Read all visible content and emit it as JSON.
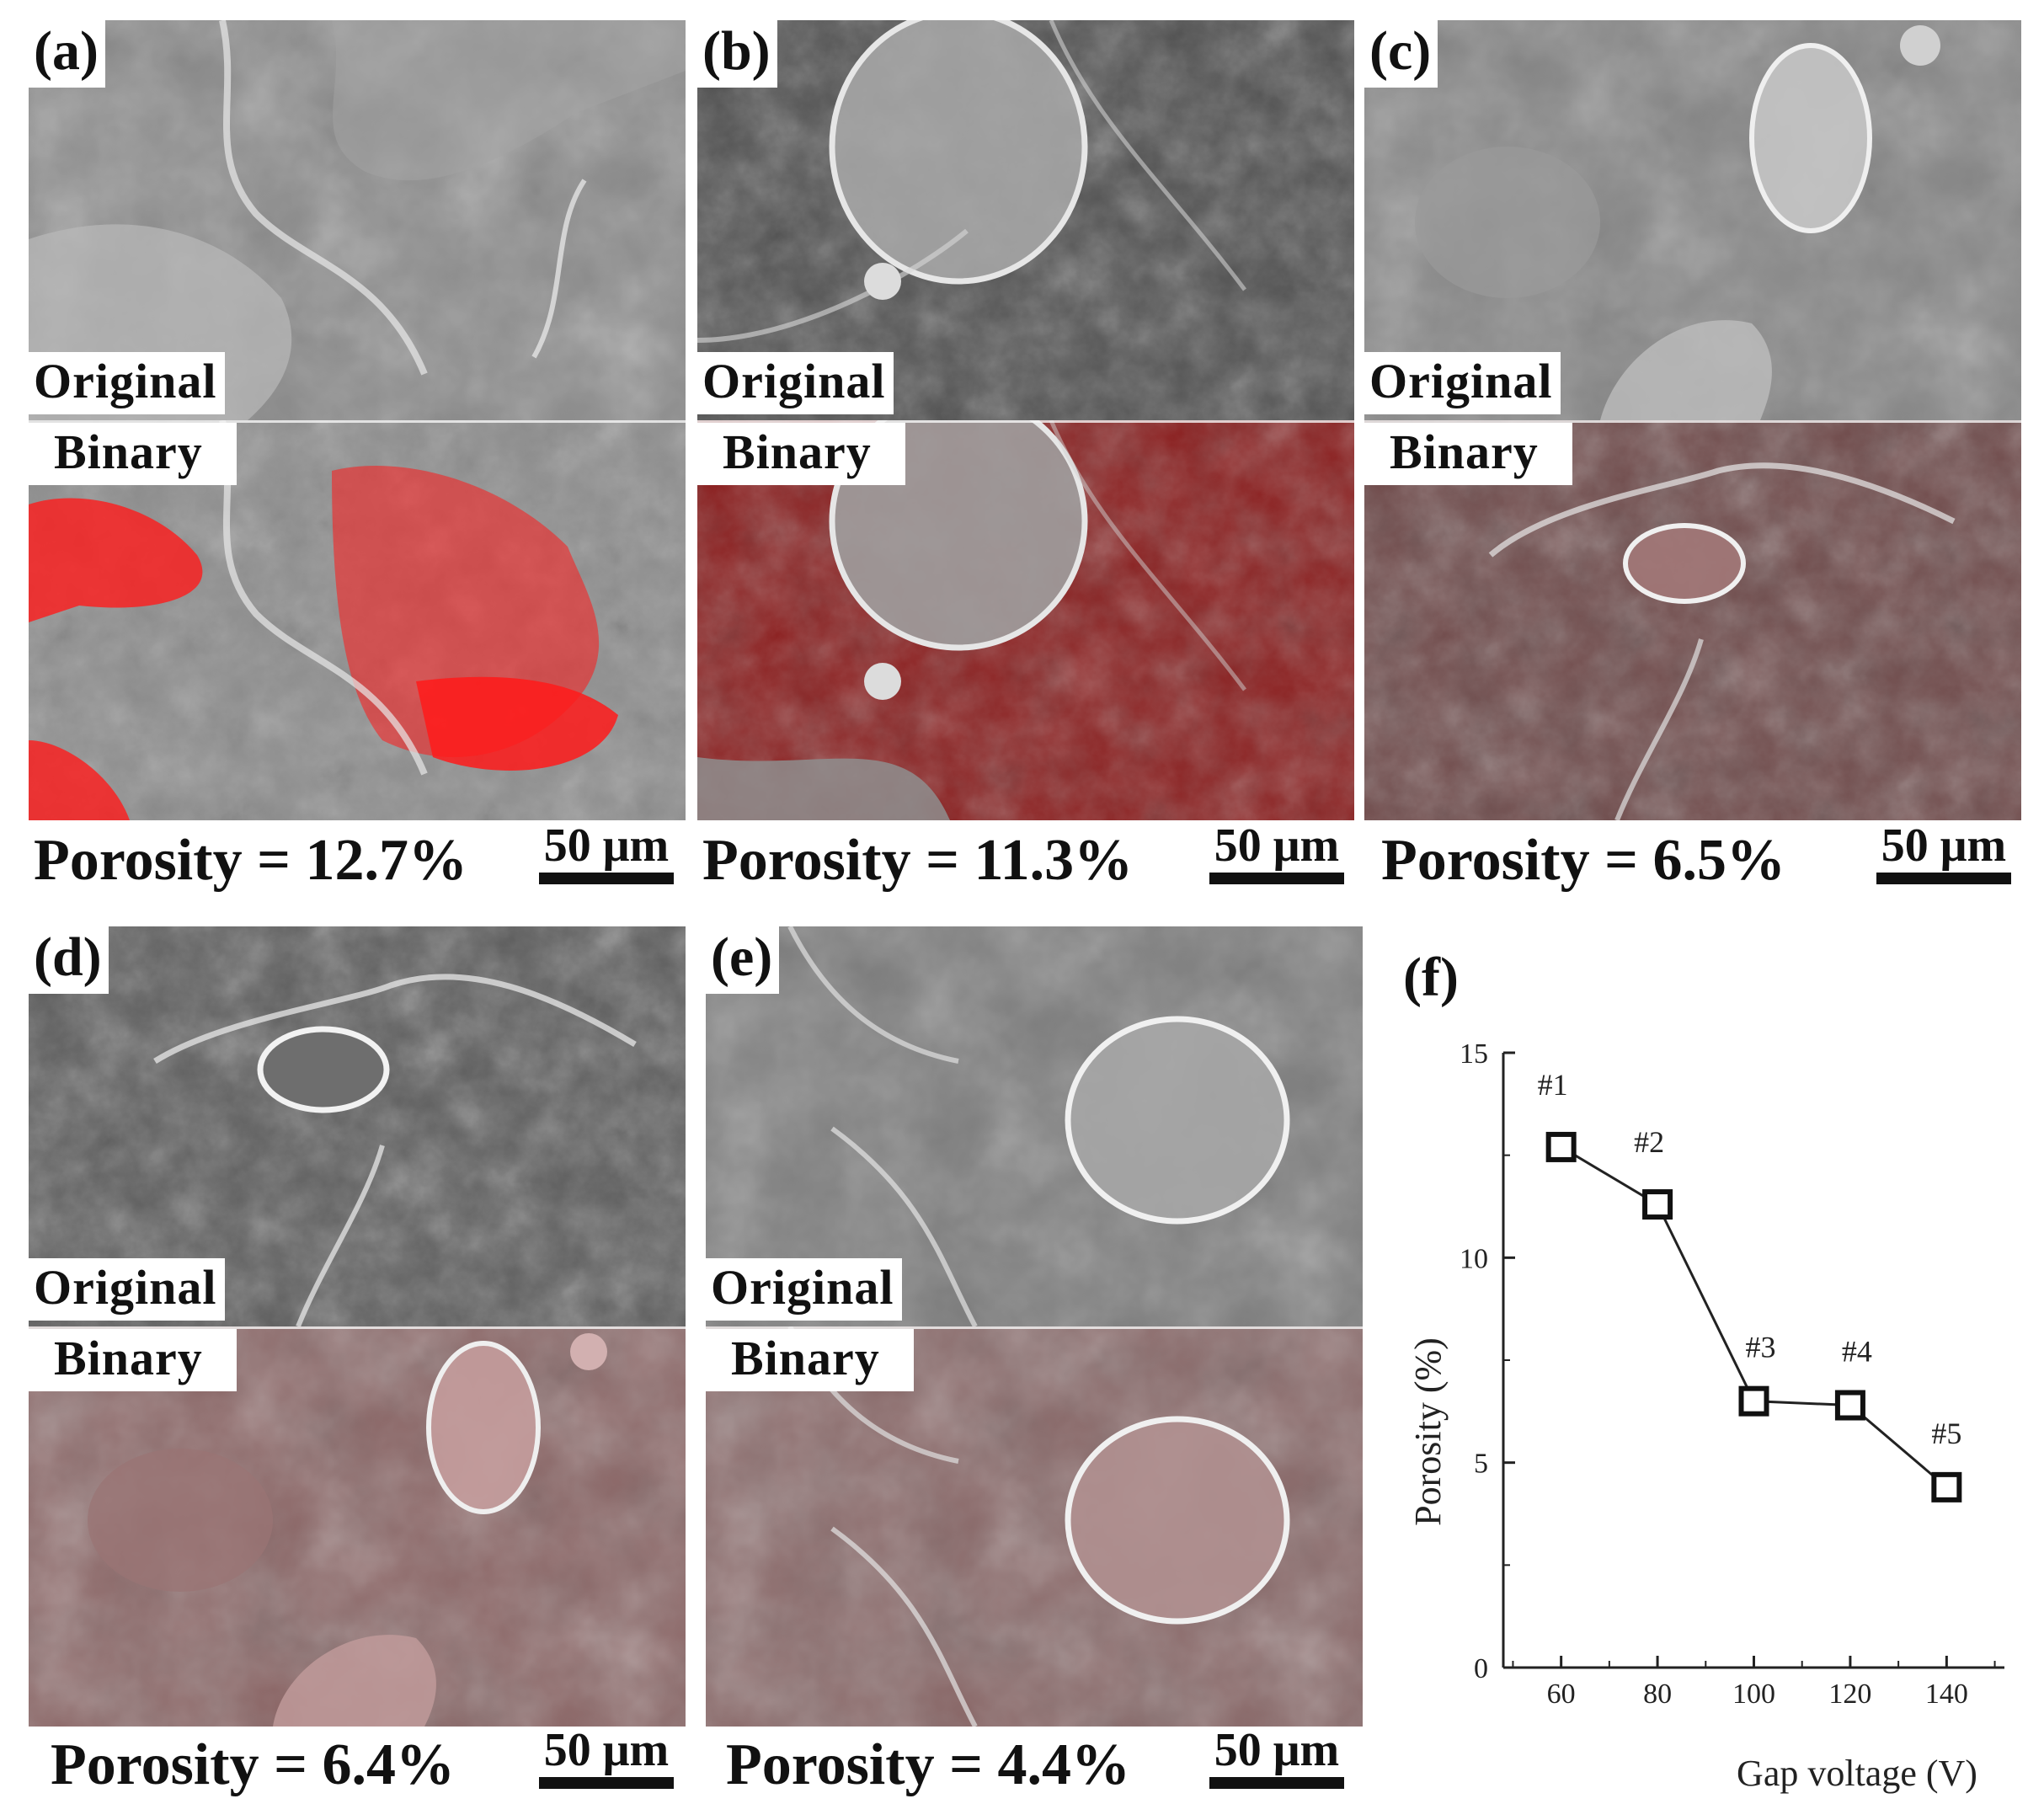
{
  "panels": [
    {
      "letter": "(a)",
      "original_label": "Original",
      "binary_label": "Binary",
      "porosity_text": "Porosity = 12.7%",
      "scale_text": "50 μm"
    },
    {
      "letter": "(b)",
      "original_label": "Original",
      "binary_label": "Binary",
      "porosity_text": "Porosity = 11.3%",
      "scale_text": "50 μm"
    },
    {
      "letter": "(c)",
      "original_label": "Original",
      "binary_label": "Binary",
      "porosity_text": "Porosity = 6.5%",
      "scale_text": "50 μm"
    },
    {
      "letter": "(d)",
      "original_label": "Original",
      "binary_label": "Binary",
      "porosity_text": "Porosity = 6.4%",
      "scale_text": "50 μm"
    },
    {
      "letter": "(e)",
      "original_label": "Original",
      "binary_label": "Binary",
      "porosity_text": "Porosity = 4.4%",
      "scale_text": "50 μm"
    }
  ],
  "chart_panel_letter": "(f)",
  "chart_data": {
    "type": "line",
    "x": [
      60,
      80,
      100,
      120,
      140
    ],
    "y": [
      12.7,
      11.3,
      6.5,
      6.4,
      4.4
    ],
    "point_labels": [
      "#1",
      "#2",
      "#3",
      "#4",
      "#5"
    ],
    "xlabel": "Gap voltage (V)",
    "ylabel": "Porosity (%)",
    "xlim": [
      48,
      152
    ],
    "ylim": [
      0,
      15
    ],
    "xticks": [
      60,
      80,
      100,
      120,
      140
    ],
    "yticks": [
      0,
      5,
      10,
      15
    ],
    "marker": "open-square",
    "grid": false
  },
  "colors": {
    "binary_overlay_strong": "#ff1a1a",
    "binary_overlay_medium": "#b31a1a",
    "binary_overlay_soft": "#a35a5a"
  }
}
